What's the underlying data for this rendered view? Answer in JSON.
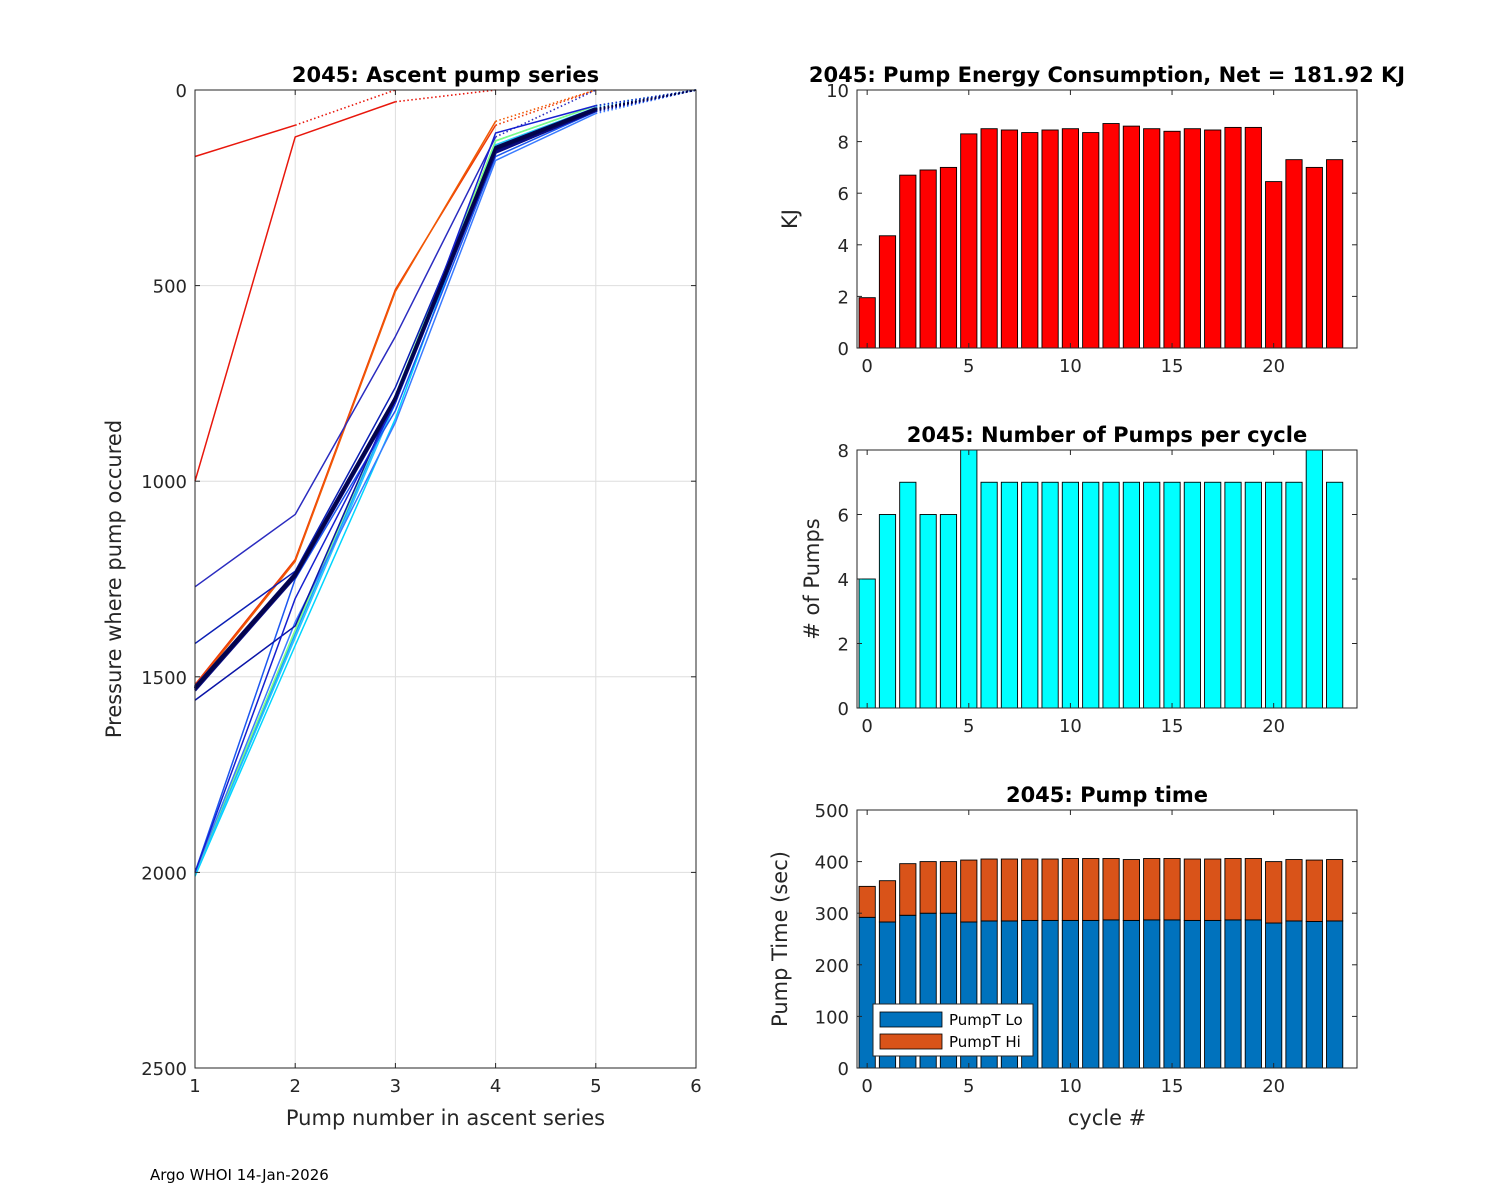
{
  "footer": "Argo WHOI 14-Jan-2026",
  "colors": {
    "energy": "#ff0000",
    "pumps": "#00ffff",
    "lo": "#0072bd",
    "hi": "#d95319"
  },
  "chart_data": [
    {
      "id": "ascent",
      "type": "line",
      "title": "2045: Ascent pump series",
      "xlabel": "Pump number in ascent series",
      "ylabel": "Pressure where pump occured",
      "xlim": [
        1,
        6
      ],
      "ylim": [
        0,
        2500
      ],
      "y_reversed": true,
      "grid": true,
      "xticks": [
        1,
        2,
        3,
        4,
        5,
        6
      ],
      "yticks": [
        0,
        500,
        1000,
        1500,
        2000,
        2500
      ],
      "series": [
        {
          "cycle": 0,
          "color": "#e8170c",
          "x": [
            1,
            2,
            3
          ],
          "y": [
            170,
            90,
            0
          ],
          "dotted_from": 1
        },
        {
          "cycle": 1,
          "color": "#e8170c",
          "x": [
            1,
            2,
            3,
            4
          ],
          "y": [
            1000,
            120,
            30,
            0
          ],
          "dotted_from": 2
        },
        {
          "cycle": 2,
          "color": "#ee3a08",
          "x": [
            1,
            2,
            3,
            4,
            5
          ],
          "y": [
            1520,
            1200,
            510,
            90,
            0
          ],
          "dotted_from": 3
        },
        {
          "cycle": 3,
          "color": "#f15a04",
          "x": [
            1,
            2,
            3,
            4,
            5
          ],
          "y": [
            1525,
            1205,
            515,
            80,
            0
          ],
          "dotted_from": 3
        },
        {
          "cycle": 4,
          "color": "#2b2cc0",
          "x": [
            1,
            2,
            3,
            4,
            5
          ],
          "y": [
            1270,
            1085,
            630,
            120,
            0
          ],
          "dotted_from": 3
        },
        {
          "cycle": 5,
          "color": "#00d5ff",
          "x": [
            1,
            2,
            3,
            4,
            5,
            6
          ],
          "y": [
            2010,
            1420,
            840,
            130,
            40,
            0
          ],
          "dotted_from": 4
        },
        {
          "cycle": 6,
          "color": "#22c7ff",
          "x": [
            1,
            2,
            3,
            4,
            5,
            6
          ],
          "y": [
            2005,
            1400,
            800,
            140,
            45,
            0
          ],
          "dotted_from": 4
        },
        {
          "cycle": 7,
          "color": "#19a0ff",
          "x": [
            1,
            2,
            3,
            4,
            5,
            6
          ],
          "y": [
            2000,
            1390,
            790,
            150,
            50,
            0
          ],
          "dotted_from": 4
        },
        {
          "cycle": 8,
          "color": "#7fff7f",
          "x": [
            1,
            2,
            3,
            4,
            5,
            6
          ],
          "y": [
            2000,
            1380,
            780,
            130,
            40,
            0
          ],
          "dotted_from": 4
        },
        {
          "cycle": 9,
          "color": "#3a7bff",
          "x": [
            1,
            2,
            3,
            4,
            5,
            6
          ],
          "y": [
            2000,
            1360,
            850,
            180,
            60,
            0
          ],
          "dotted_from": 4
        },
        {
          "cycle": 10,
          "color": "#1c57f0",
          "x": [
            1,
            2,
            3,
            4,
            5,
            6
          ],
          "y": [
            2000,
            1250,
            820,
            170,
            55,
            0
          ],
          "dotted_from": 4
        },
        {
          "cycle": 11,
          "color": "#0b1fb5",
          "x": [
            1,
            2,
            3,
            4,
            5,
            6
          ],
          "y": [
            1415,
            1230,
            760,
            150,
            50,
            0
          ],
          "dotted_from": 4
        },
        {
          "cycle": 12,
          "color": "#0a14a8",
          "x": [
            1,
            2,
            3,
            4,
            5,
            6
          ],
          "y": [
            1560,
            1370,
            780,
            160,
            55,
            0
          ],
          "dotted_from": 4
        },
        {
          "cycle": 13,
          "color": "#091594",
          "x": [
            1,
            2,
            3,
            4,
            5,
            6
          ],
          "y": [
            1530,
            1240,
            790,
            155,
            50,
            0
          ],
          "dotted_from": 4
        },
        {
          "cycle": 14,
          "color": "#0b0d8a",
          "x": [
            1,
            2,
            3,
            4,
            5,
            6
          ],
          "y": [
            1525,
            1235,
            785,
            150,
            48,
            0
          ],
          "dotted_from": 4
        },
        {
          "cycle": 15,
          "color": "#0a0c80",
          "x": [
            1,
            2,
            3,
            4,
            5,
            6
          ],
          "y": [
            1535,
            1245,
            795,
            160,
            52,
            0
          ],
          "dotted_from": 4
        },
        {
          "cycle": 16,
          "color": "#070a78",
          "x": [
            1,
            2,
            3,
            4,
            5,
            6
          ],
          "y": [
            1530,
            1240,
            790,
            150,
            50,
            0
          ],
          "dotted_from": 4
        },
        {
          "cycle": 17,
          "color": "#070a70",
          "x": [
            1,
            2,
            3,
            4,
            5,
            6
          ],
          "y": [
            1528,
            1238,
            788,
            148,
            48,
            0
          ],
          "dotted_from": 4
        },
        {
          "cycle": 18,
          "color": "#060868",
          "x": [
            1,
            2,
            3,
            4,
            5,
            6
          ],
          "y": [
            1532,
            1242,
            792,
            152,
            51,
            0
          ],
          "dotted_from": 4
        },
        {
          "cycle": 19,
          "color": "#060862",
          "x": [
            1,
            2,
            3,
            4,
            5,
            6
          ],
          "y": [
            1530,
            1240,
            790,
            150,
            50,
            0
          ],
          "dotted_from": 4
        },
        {
          "cycle": 20,
          "color": "#1620d0",
          "x": [
            1,
            2,
            3,
            4,
            5,
            6
          ],
          "y": [
            2000,
            1300,
            800,
            110,
            40,
            0
          ],
          "dotted_from": 4
        },
        {
          "cycle": 21,
          "color": "#05065a",
          "x": [
            1,
            2,
            3,
            4,
            5,
            6
          ],
          "y": [
            1530,
            1240,
            790,
            150,
            50,
            0
          ],
          "dotted_from": 4
        },
        {
          "cycle": 22,
          "color": "#050652",
          "x": [
            1,
            2,
            3,
            4,
            5,
            6
          ],
          "y": [
            1526,
            1236,
            786,
            146,
            47,
            0
          ],
          "dotted_from": 4
        },
        {
          "cycle": 23,
          "color": "#04044a",
          "x": [
            1,
            2,
            3,
            4,
            5,
            6
          ],
          "y": [
            1530,
            1240,
            790,
            150,
            50,
            0
          ],
          "dotted_from": 4
        }
      ]
    },
    {
      "id": "energy",
      "type": "bar",
      "title": "2045: Pump Energy Consumption,  Net = 181.92 KJ",
      "xlabel": "",
      "ylabel": "KJ",
      "xlim": [
        -0.5,
        24.1
      ],
      "ylim": [
        0,
        10
      ],
      "xticks": [
        0,
        5,
        10,
        15,
        20
      ],
      "yticks": [
        0,
        2,
        4,
        6,
        8,
        10
      ],
      "categories": [
        0,
        1,
        2,
        3,
        4,
        5,
        6,
        7,
        8,
        9,
        10,
        11,
        12,
        13,
        14,
        15,
        16,
        17,
        18,
        19,
        20,
        21,
        22,
        23
      ],
      "values": [
        1.95,
        4.35,
        6.7,
        6.9,
        7.0,
        8.3,
        8.5,
        8.45,
        8.35,
        8.45,
        8.5,
        8.35,
        8.7,
        8.6,
        8.5,
        8.4,
        8.5,
        8.45,
        8.55,
        8.55,
        6.45,
        7.3,
        7.0,
        7.3
      ]
    },
    {
      "id": "pumps",
      "type": "bar",
      "title": "2045: Number of Pumps per cycle",
      "xlabel": "",
      "ylabel": "# of Pumps",
      "xlim": [
        -0.5,
        24.1
      ],
      "ylim": [
        0,
        8
      ],
      "xticks": [
        0,
        5,
        10,
        15,
        20
      ],
      "yticks": [
        0,
        2,
        4,
        6,
        8
      ],
      "categories": [
        0,
        1,
        2,
        3,
        4,
        5,
        6,
        7,
        8,
        9,
        10,
        11,
        12,
        13,
        14,
        15,
        16,
        17,
        18,
        19,
        20,
        21,
        22,
        23
      ],
      "values": [
        4,
        6,
        7,
        6,
        6,
        8,
        7,
        7,
        7,
        7,
        7,
        7,
        7,
        7,
        7,
        7,
        7,
        7,
        7,
        7,
        7,
        7,
        8,
        7
      ]
    },
    {
      "id": "time",
      "type": "bar",
      "stacked": true,
      "title": "2045: Pump time",
      "xlabel": "cycle #",
      "ylabel": "Pump Time (sec)",
      "xlim": [
        -0.5,
        24.1
      ],
      "ylim": [
        0,
        500
      ],
      "xticks": [
        0,
        5,
        10,
        15,
        20
      ],
      "yticks": [
        0,
        100,
        200,
        300,
        400,
        500
      ],
      "categories": [
        0,
        1,
        2,
        3,
        4,
        5,
        6,
        7,
        8,
        9,
        10,
        11,
        12,
        13,
        14,
        15,
        16,
        17,
        18,
        19,
        20,
        21,
        22,
        23
      ],
      "legend": [
        "PumpT Lo",
        "PumpT Hi"
      ],
      "legend_location": "bottom-left",
      "series": [
        {
          "name": "PumpT Lo",
          "values": [
            292,
            283,
            296,
            300,
            300,
            283,
            285,
            285,
            286,
            286,
            286,
            286,
            287,
            286,
            287,
            287,
            286,
            286,
            287,
            287,
            281,
            285,
            284,
            285
          ]
        },
        {
          "name": "PumpT Hi",
          "values": [
            60,
            80,
            100,
            100,
            100,
            120,
            120,
            120,
            119,
            119,
            120,
            120,
            119,
            118,
            119,
            119,
            119,
            119,
            119,
            119,
            119,
            119,
            119,
            119
          ]
        }
      ]
    }
  ]
}
